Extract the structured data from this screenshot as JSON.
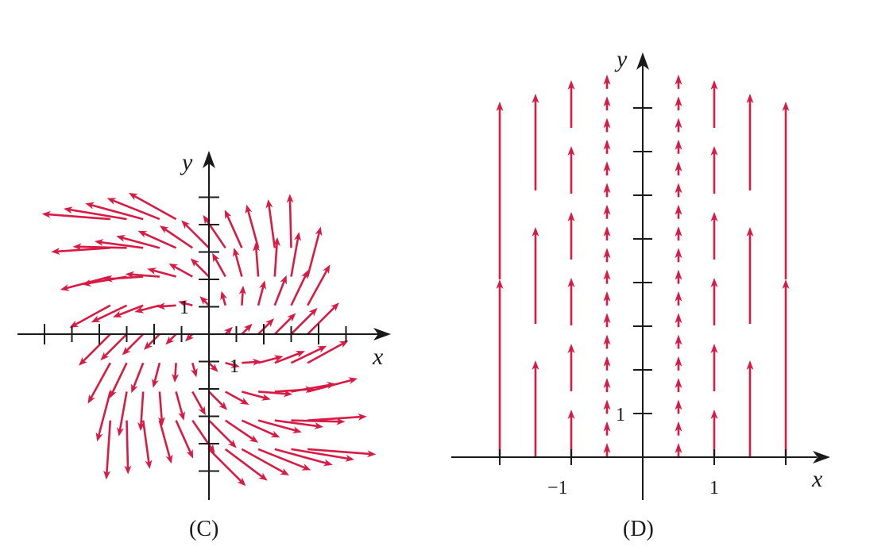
{
  "colors": {
    "field": "#d81b44",
    "axis": "#1a1a1a"
  },
  "panel_c": {
    "caption": "(C)",
    "x_label": "x",
    "y_label": "y",
    "tick_x_label": "1",
    "tick_y_label": "1"
  },
  "panel_d": {
    "caption": "(D)",
    "x_label": "x",
    "y_label": "y",
    "tick_x_neg_label": "−1",
    "tick_x_pos_label": "1",
    "tick_y_label": "1"
  }
}
